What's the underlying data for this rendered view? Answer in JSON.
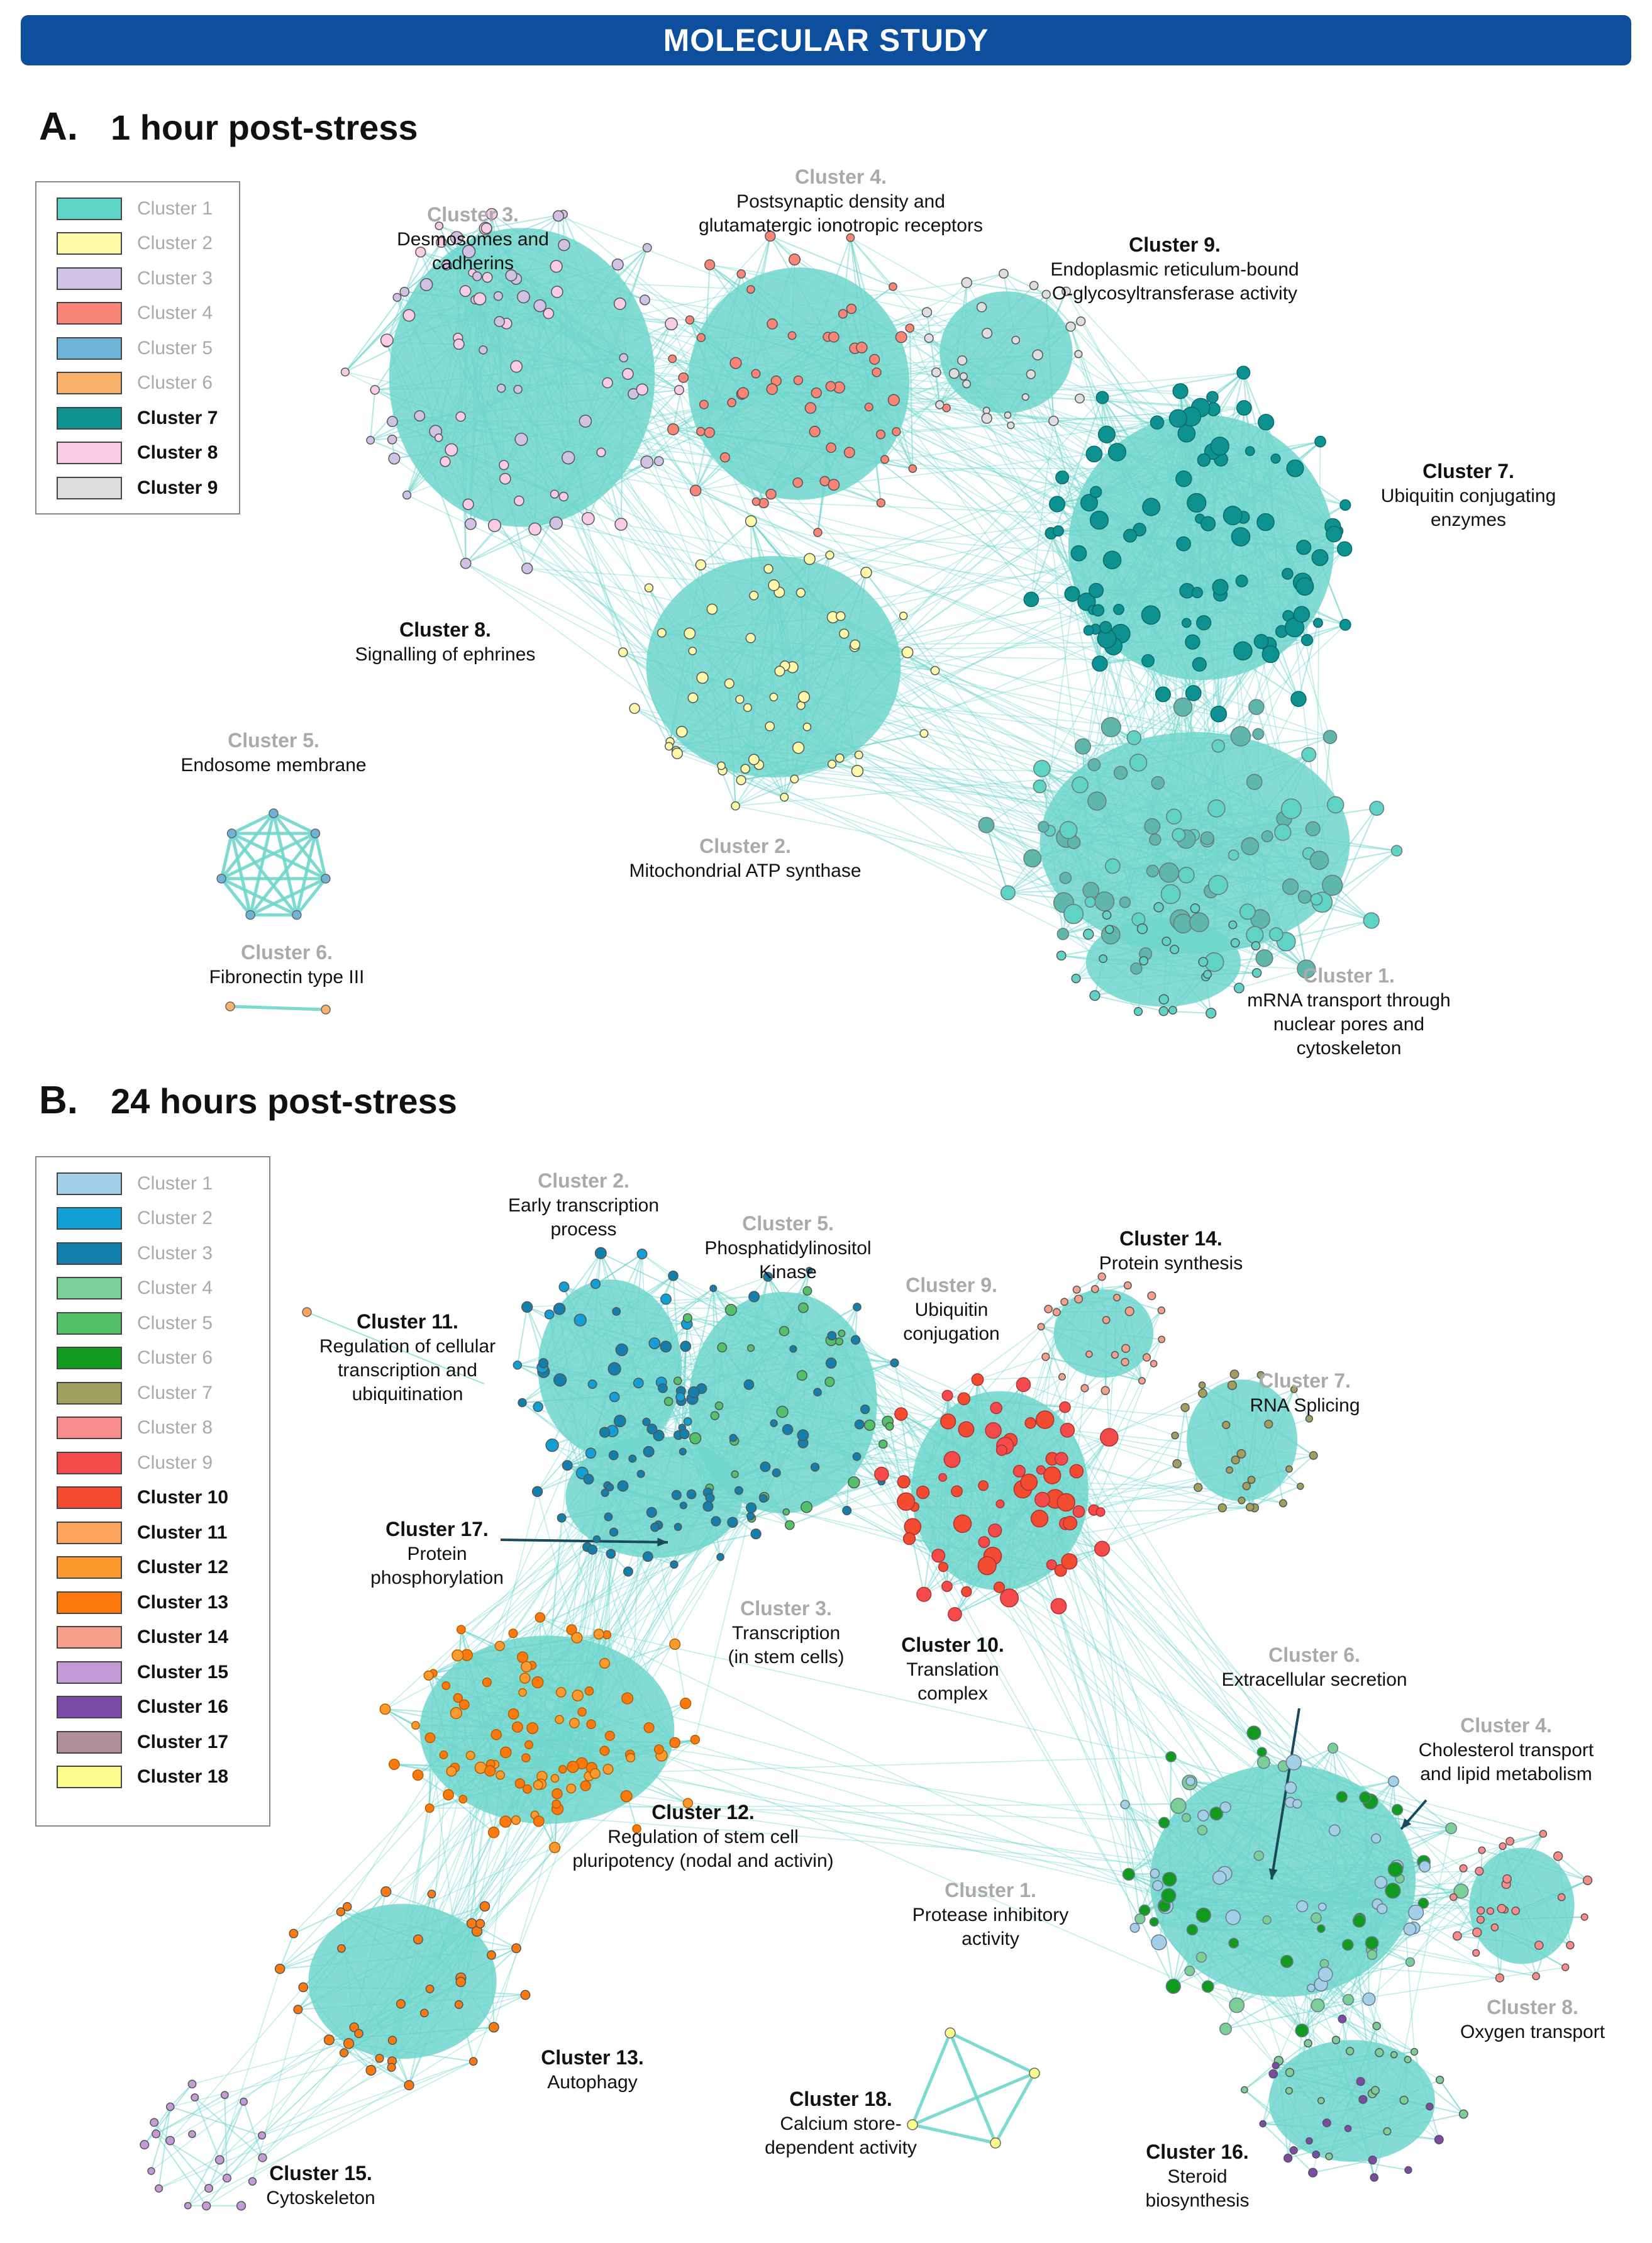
{
  "header": {
    "title": "MOLECULAR STUDY"
  },
  "edge_color": "#6fd6cc",
  "panel_a": {
    "letter": "A.",
    "title": "1 hour post-stress",
    "legend": [
      {
        "label": "Cluster 1",
        "color": "#5fd3c6",
        "significant": false
      },
      {
        "label": "Cluster 2",
        "color": "#fffaaa",
        "significant": false
      },
      {
        "label": "Cluster 3",
        "color": "#cfc2e4",
        "significant": false
      },
      {
        "label": "Cluster 4",
        "color": "#f98577",
        "significant": false
      },
      {
        "label": "Cluster 5",
        "color": "#6fb3d9",
        "significant": false
      },
      {
        "label": "Cluster 6",
        "color": "#fbb26b",
        "significant": false
      },
      {
        "label": "Cluster 7",
        "color": "#0e9191",
        "significant": true
      },
      {
        "label": "Cluster 8",
        "color": "#f9cce6",
        "significant": true
      },
      {
        "label": "Cluster 9",
        "color": "#dedede",
        "significant": true
      }
    ],
    "labels": [
      {
        "id": "a-c3",
        "name": "Cluster 3.",
        "desc": "Desmosomes and\ncadherins",
        "significant": false
      },
      {
        "id": "a-c4",
        "name": "Cluster 4.",
        "desc": "Postsynaptic density and\nglutamatergic ionotropic receptors",
        "significant": false
      },
      {
        "id": "a-c9",
        "name": "Cluster 9.",
        "desc": "Endoplasmic reticulum-bound\nO-glycosyltransferase activity",
        "significant": true
      },
      {
        "id": "a-c7",
        "name": "Cluster 7.",
        "desc": "Ubiquitin conjugating\nenzymes",
        "significant": true
      },
      {
        "id": "a-c8",
        "name": "Cluster 8.",
        "desc": "Signalling of ephrines",
        "significant": true
      },
      {
        "id": "a-c5",
        "name": "Cluster 5.",
        "desc": "Endosome membrane",
        "significant": false
      },
      {
        "id": "a-c2",
        "name": "Cluster 2.",
        "desc": "Mitochondrial ATP synthase",
        "significant": false
      },
      {
        "id": "a-c6",
        "name": "Cluster 6.",
        "desc": "Fibronectin type III",
        "significant": false
      },
      {
        "id": "a-c1",
        "name": "Cluster 1.",
        "desc": "mRNA transport through\nnuclear pores and\ncytoskeleton",
        "significant": false
      }
    ]
  },
  "panel_b": {
    "letter": "B.",
    "title": "24 hours post-stress",
    "legend": [
      {
        "label": "Cluster 1",
        "color": "#a4cfe8",
        "significant": false
      },
      {
        "label": "Cluster 2",
        "color": "#129fd6",
        "significant": false
      },
      {
        "label": "Cluster 3",
        "color": "#127fac",
        "significant": false
      },
      {
        "label": "Cluster 4",
        "color": "#7bcf96",
        "significant": false
      },
      {
        "label": "Cluster 5",
        "color": "#52c16a",
        "significant": false
      },
      {
        "label": "Cluster 6",
        "color": "#109a1e",
        "significant": false
      },
      {
        "label": "Cluster 7",
        "color": "#a09f5e",
        "significant": false
      },
      {
        "label": "Cluster 8",
        "color": "#f98b8b",
        "significant": false
      },
      {
        "label": "Cluster 9",
        "color": "#f44a4a",
        "significant": false
      },
      {
        "label": "Cluster 10",
        "color": "#f24b30",
        "significant": true
      },
      {
        "label": "Cluster 11",
        "color": "#fba561",
        "significant": true
      },
      {
        "label": "Cluster 12",
        "color": "#fb9a2e",
        "significant": true
      },
      {
        "label": "Cluster 13",
        "color": "#fb7a10",
        "significant": true
      },
      {
        "label": "Cluster 14",
        "color": "#f4a08b",
        "significant": true
      },
      {
        "label": "Cluster 15",
        "color": "#c49bd6",
        "significant": true
      },
      {
        "label": "Cluster 16",
        "color": "#7c4aa7",
        "significant": true
      },
      {
        "label": "Cluster 17",
        "color": "#b08d9a",
        "significant": true
      },
      {
        "label": "Cluster 18",
        "color": "#fcfc8c",
        "significant": true
      }
    ],
    "labels": [
      {
        "id": "b-c2",
        "name": "Cluster 2.",
        "desc": "Early transcription\nprocess",
        "significant": false
      },
      {
        "id": "b-c5",
        "name": "Cluster 5.",
        "desc": "Phosphatidylinositol\nKinase",
        "significant": false
      },
      {
        "id": "b-c14",
        "name": "Cluster 14.",
        "desc": "Protein synthesis",
        "significant": true
      },
      {
        "id": "b-c9",
        "name": "Cluster 9.",
        "desc": "Ubiquitin\nconjugation",
        "significant": false
      },
      {
        "id": "b-c11",
        "name": "Cluster 11.",
        "desc": "Regulation of cellular\ntranscription and\nubiquitination",
        "significant": true
      },
      {
        "id": "b-c7",
        "name": "Cluster 7.",
        "desc": "RNA Splicing",
        "significant": false
      },
      {
        "id": "b-c17",
        "name": "Cluster 17.",
        "desc": "Protein\nphosphorylation",
        "significant": true
      },
      {
        "id": "b-c3",
        "name": "Cluster 3.",
        "desc": "Transcription\n(in stem cells)",
        "significant": false
      },
      {
        "id": "b-c10",
        "name": "Cluster 10.",
        "desc": "Translation\ncomplex",
        "significant": true
      },
      {
        "id": "b-c6",
        "name": "Cluster 6.",
        "desc": "Extracellular secretion",
        "significant": false
      },
      {
        "id": "b-c4",
        "name": "Cluster 4.",
        "desc": "Cholesterol transport\nand lipid metabolism",
        "significant": false
      },
      {
        "id": "b-c12",
        "name": "Cluster 12.",
        "desc": "Regulation of stem cell\npluripotency (nodal and activin)",
        "significant": true
      },
      {
        "id": "b-c1",
        "name": "Cluster 1.",
        "desc": "Protease inhibitory\nactivity",
        "significant": false
      },
      {
        "id": "b-c8",
        "name": "Cluster 8.",
        "desc": "Oxygen transport",
        "significant": false
      },
      {
        "id": "b-c13",
        "name": "Cluster 13.",
        "desc": "Autophagy",
        "significant": true
      },
      {
        "id": "b-c18",
        "name": "Cluster 18.",
        "desc": "Calcium store-\ndependent activity",
        "significant": true
      },
      {
        "id": "b-c16",
        "name": "Cluster 16.",
        "desc": "Steroid\nbiosynthesis",
        "significant": true
      },
      {
        "id": "b-c15",
        "name": "Cluster 15.",
        "desc": "Cytoskeleton",
        "significant": true
      }
    ]
  }
}
